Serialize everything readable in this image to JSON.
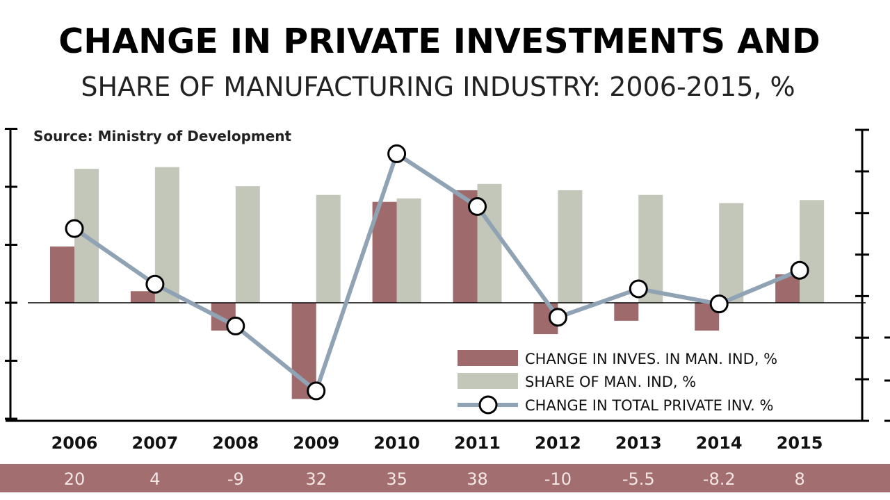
{
  "chart_data": {
    "type": "bar",
    "title": "CHANGE IN PRIVATE INVESTMENTS AND",
    "subtitle": "SHARE OF MANUFACTURING INDUSTRY: 2006-2015, %",
    "source": "Source: Ministry of Development",
    "categories": [
      "2006",
      "2007",
      "2008",
      "2009",
      "2010",
      "2011",
      "2012",
      "2013",
      "2014",
      "2015"
    ],
    "ylim": [
      -2,
      3
    ],
    "tick_labels_shown": false,
    "grid": false,
    "legend_position": "bottom-right",
    "series": [
      {
        "name": "CHANGE IN INVES. IN MAN. IND, %",
        "kind": "bar",
        "color": "#9e6a6c",
        "values": [
          0.97,
          0.2,
          -0.48,
          -1.66,
          1.74,
          1.94,
          -0.54,
          -0.31,
          -0.48,
          0.49
        ]
      },
      {
        "name": "SHARE OF MAN. IND, %",
        "kind": "bar",
        "color": "#c3c7b9",
        "values": [
          2.31,
          2.34,
          2.01,
          1.86,
          1.8,
          2.05,
          1.94,
          1.86,
          1.72,
          1.77
        ]
      },
      {
        "name": "CHANGE IN TOTAL PRIVATE INV. %",
        "kind": "line",
        "color": "#8fa3b5",
        "values": [
          1.28,
          0.32,
          -0.4,
          -1.52,
          2.57,
          1.66,
          -0.25,
          0.24,
          -0.02,
          0.56
        ]
      }
    ],
    "table_row": {
      "color": "#a36e70",
      "values": [
        "20",
        "4",
        "-9",
        "32",
        "35",
        "38",
        "-10",
        "-5.5",
        "-8.2",
        "8"
      ]
    }
  }
}
